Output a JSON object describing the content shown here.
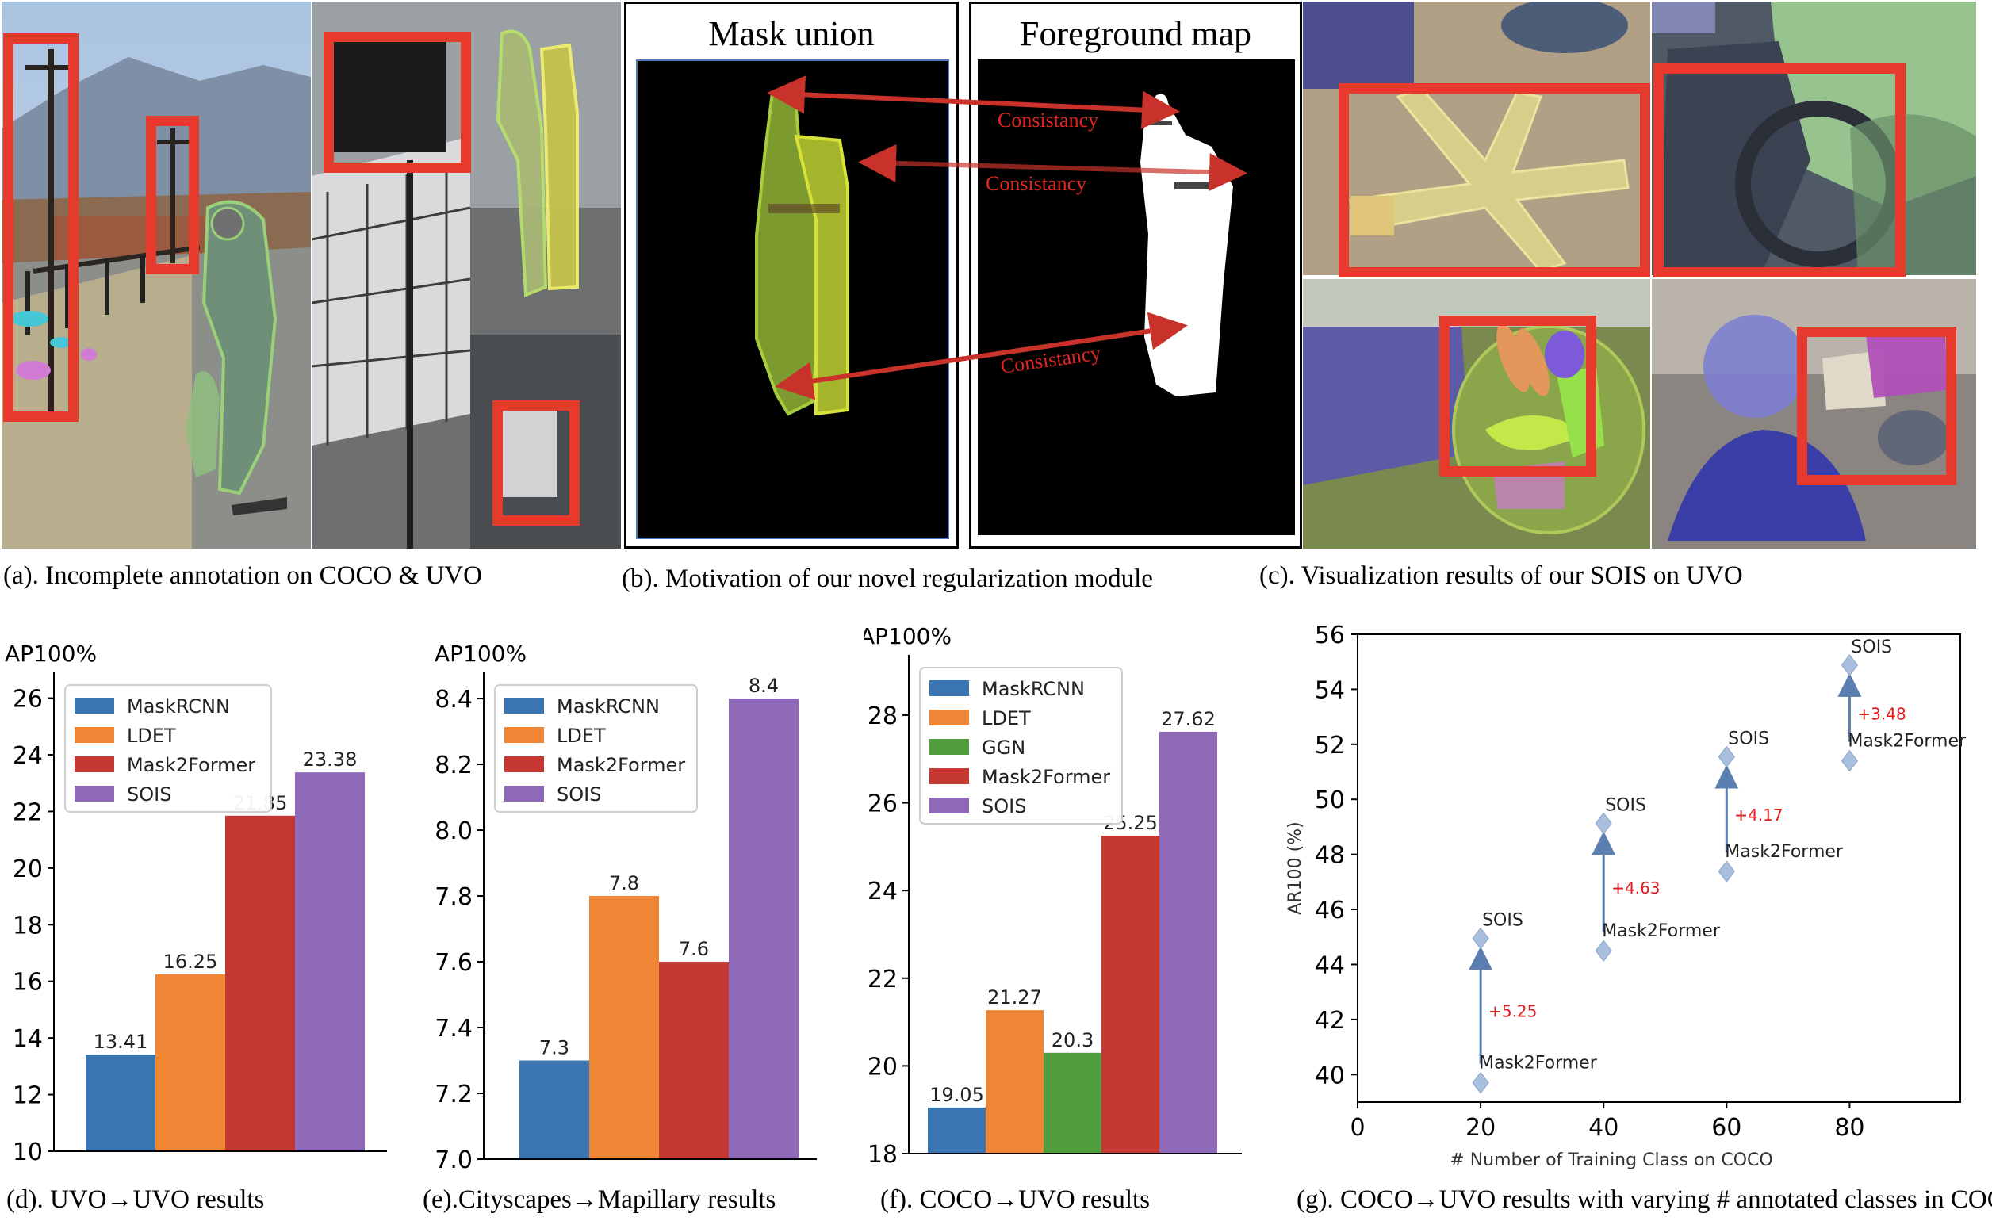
{
  "captions": {
    "a": "(a). Incomplete annotation on COCO & UVO",
    "b": "(b). Motivation of our novel regularization module",
    "c": "(c). Visualization results of our SOIS on UVO",
    "d": "(d). UVO→UVO results",
    "e": "(e).Cityscapes→Mapillary results",
    "f": "(f). COCO→UVO results",
    "g": "(g). COCO→UVO results with varying # annotated classes in COCO"
  },
  "panel_b": {
    "left_title": "Mask union",
    "right_title": "Foreground map",
    "arrow_label_1": "Consistancy",
    "arrow_label_2": "Consistancy",
    "arrow_label_3": "Consistancy"
  },
  "colors": {
    "maskrcnn": "#3b75af",
    "ldet": "#ef8636",
    "ggn": "#519e3e",
    "mask2former": "#c53932",
    "sois": "#8d69b8",
    "red_box": "#e53a2c",
    "arrow": "#7f96c4",
    "gain": "#e41a1c"
  },
  "chart_data": [
    {
      "type": "bar",
      "ylabel": "AP100%",
      "ylim": [
        10,
        26.8
      ],
      "yticks": [
        10,
        12,
        14,
        16,
        18,
        20,
        22,
        24,
        26
      ],
      "series": [
        {
          "name": "MaskRCNN",
          "value": 13.41,
          "label": "13.41",
          "color": "#3b75af"
        },
        {
          "name": "LDET",
          "value": 16.25,
          "label": "16.25",
          "color": "#ef8636"
        },
        {
          "name": "Mask2Former",
          "value": 21.85,
          "label": "21.85",
          "color": "#c53932"
        },
        {
          "name": "SOIS",
          "value": 23.38,
          "label": "23.38",
          "color": "#8d69b8"
        }
      ],
      "legend": "top-left"
    },
    {
      "type": "bar",
      "ylabel": "AP100%",
      "ylim": [
        7.0,
        8.47
      ],
      "yticks": [
        7.0,
        7.2,
        7.4,
        7.6,
        7.8,
        8.0,
        8.2,
        8.4
      ],
      "series": [
        {
          "name": "MaskRCNN",
          "value": 7.3,
          "label": "7.3",
          "color": "#3b75af"
        },
        {
          "name": "LDET",
          "value": 7.8,
          "label": "7.8",
          "color": "#ef8636"
        },
        {
          "name": "Mask2Former",
          "value": 7.6,
          "label": "7.6",
          "color": "#c53932"
        },
        {
          "name": "SOIS",
          "value": 8.4,
          "label": "8.4",
          "color": "#8d69b8"
        }
      ],
      "legend": "top-left"
    },
    {
      "type": "bar",
      "ylabel": "AP100%",
      "ylim": [
        18,
        29.3
      ],
      "yticks": [
        18,
        20,
        22,
        24,
        26,
        28
      ],
      "series": [
        {
          "name": "MaskRCNN",
          "value": 19.05,
          "label": "19.05",
          "color": "#3b75af"
        },
        {
          "name": "LDET",
          "value": 21.27,
          "label": "21.27",
          "color": "#ef8636"
        },
        {
          "name": "GGN",
          "value": 20.3,
          "label": "20.3",
          "color": "#519e3e"
        },
        {
          "name": "Mask2Former",
          "value": 25.25,
          "label": "25.25",
          "color": "#c53932"
        },
        {
          "name": "SOIS",
          "value": 27.62,
          "label": "27.62",
          "color": "#8d69b8"
        }
      ],
      "legend": "top-left"
    },
    {
      "type": "scatter",
      "xlabel": "# Number of Training Class on COCO",
      "ylabel": "AR100 (%)",
      "xlim": [
        0,
        98
      ],
      "ylim": [
        39,
        56
      ],
      "xticks": [
        0,
        20,
        40,
        60,
        80
      ],
      "yticks": [
        40,
        42,
        44,
        46,
        48,
        50,
        52,
        54,
        56
      ],
      "points": [
        {
          "x": 20,
          "baseline": 39.7,
          "sois": 44.95,
          "gain": "+5.25",
          "label_low": "Mask2Former",
          "label_high": "SOIS"
        },
        {
          "x": 40,
          "baseline": 44.5,
          "sois": 49.13,
          "gain": "+4.63",
          "label_low": "Mask2Former",
          "label_high": "SOIS"
        },
        {
          "x": 60,
          "baseline": 47.38,
          "sois": 51.55,
          "gain": "+4.17",
          "label_low": "Mask2Former",
          "label_high": "SOIS"
        },
        {
          "x": 80,
          "baseline": 51.4,
          "sois": 54.88,
          "gain": "+3.48",
          "label_low": "Mask2Former",
          "label_high": "SOIS"
        }
      ]
    }
  ]
}
